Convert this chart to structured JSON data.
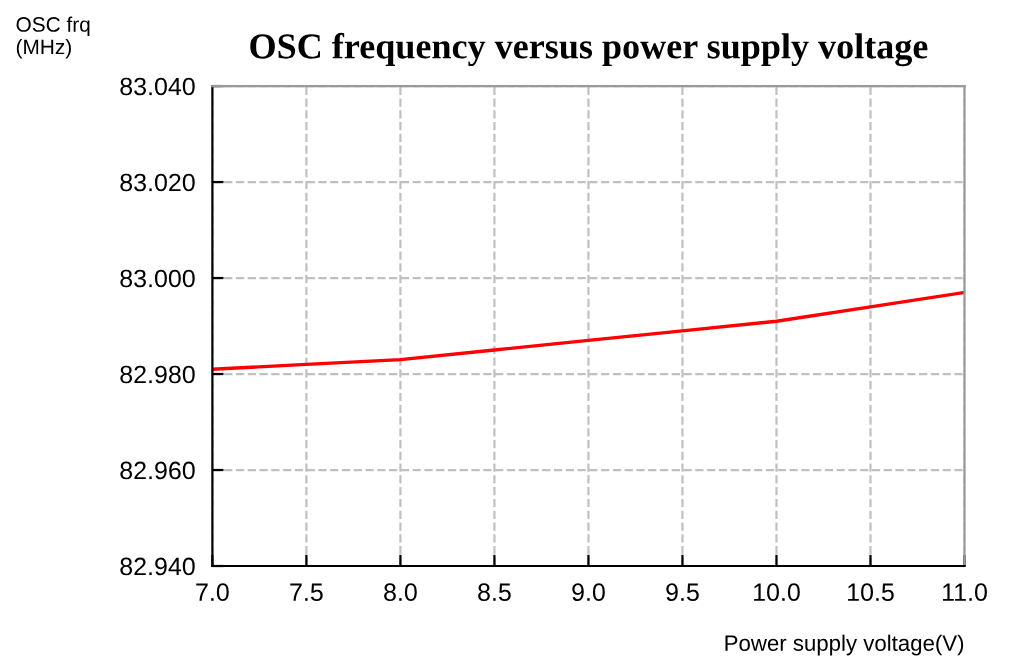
{
  "chart_data": {
    "type": "line",
    "title": "OSC frequency versus power supply voltage",
    "ylabel": "OSC frq\n(MHz)",
    "xlabel": "Power supply voltage(V)",
    "x": [
      7.0,
      7.5,
      8.0,
      8.5,
      9.0,
      9.5,
      10.0,
      10.5,
      11.0
    ],
    "series": [
      {
        "color": "#ff0000",
        "values": [
          82.981,
          82.982,
          82.983,
          82.985,
          82.987,
          82.989,
          82.991,
          82.994,
          82.997
        ]
      }
    ],
    "xlim": [
      7.0,
      11.0
    ],
    "xticks": [
      {
        "value": 7.0,
        "label": "7.0"
      },
      {
        "value": 7.5,
        "label": "7.5"
      },
      {
        "value": 8.0,
        "label": "8.0"
      },
      {
        "value": 8.5,
        "label": "8.5"
      },
      {
        "value": 9.0,
        "label": "9.0"
      },
      {
        "value": 9.5,
        "label": "9.5"
      },
      {
        "value": 10.0,
        "label": "10.0"
      },
      {
        "value": 10.5,
        "label": "10.5"
      },
      {
        "value": 11.0,
        "label": "11.0"
      }
    ],
    "ylim": [
      82.94,
      83.04
    ],
    "yticks": [
      {
        "value": 82.94,
        "label": "82.940"
      },
      {
        "value": 82.96,
        "label": "82.960"
      },
      {
        "value": 82.98,
        "label": "82.980"
      },
      {
        "value": 83.0,
        "label": "83.000"
      },
      {
        "value": 83.02,
        "label": "83.020"
      },
      {
        "value": 83.04,
        "label": "83.040"
      }
    ],
    "grid": true,
    "marker": "none",
    "line_style": "solid"
  }
}
